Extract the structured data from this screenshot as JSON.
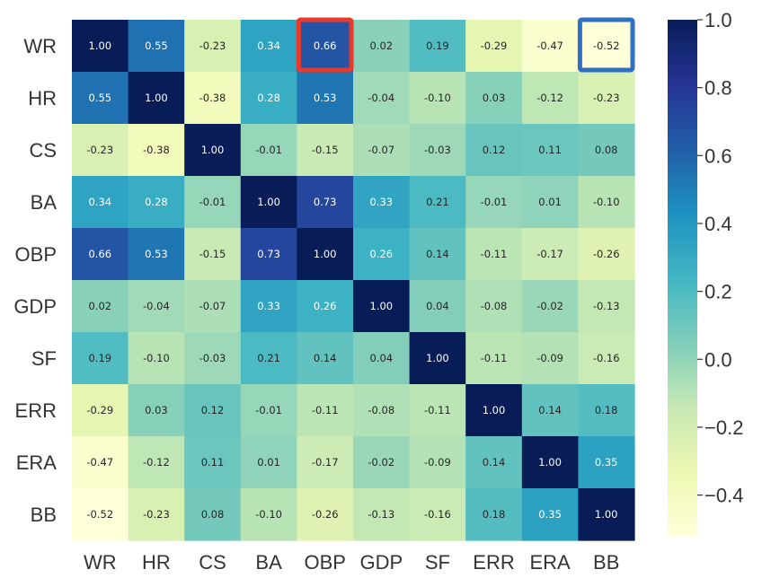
{
  "chart_data": {
    "type": "heatmap",
    "title": "",
    "labels": [
      "WR",
      "HR",
      "CS",
      "BA",
      "OBP",
      "GDP",
      "SF",
      "ERR",
      "ERA",
      "BB"
    ],
    "matrix": [
      [
        1.0,
        0.55,
        -0.23,
        0.34,
        0.66,
        0.02,
        0.19,
        -0.29,
        -0.47,
        -0.52
      ],
      [
        0.55,
        1.0,
        -0.38,
        0.28,
        0.53,
        -0.04,
        -0.1,
        0.03,
        -0.12,
        -0.23
      ],
      [
        -0.23,
        -0.38,
        1.0,
        -0.01,
        -0.15,
        -0.07,
        -0.03,
        0.12,
        0.11,
        0.08
      ],
      [
        0.34,
        0.28,
        -0.01,
        1.0,
        0.73,
        0.33,
        0.21,
        -0.01,
        0.01,
        -0.1
      ],
      [
        0.66,
        0.53,
        -0.15,
        0.73,
        1.0,
        0.26,
        0.14,
        -0.11,
        -0.17,
        -0.26
      ],
      [
        0.02,
        -0.04,
        -0.07,
        0.33,
        0.26,
        1.0,
        0.04,
        -0.08,
        -0.02,
        -0.13
      ],
      [
        0.19,
        -0.1,
        -0.03,
        0.21,
        0.14,
        0.04,
        1.0,
        -0.11,
        -0.09,
        -0.16
      ],
      [
        -0.29,
        0.03,
        0.12,
        -0.01,
        -0.11,
        -0.08,
        -0.11,
        1.0,
        0.14,
        0.18
      ],
      [
        -0.47,
        -0.12,
        0.11,
        0.01,
        -0.17,
        -0.02,
        -0.09,
        0.14,
        1.0,
        0.35
      ],
      [
        -0.52,
        -0.23,
        0.08,
        -0.1,
        -0.26,
        -0.13,
        -0.16,
        0.18,
        0.35,
        1.0
      ]
    ],
    "value_format": "0.00",
    "colormap": "YlGnBu",
    "color_range": [
      -0.52,
      1.0
    ],
    "colorbar": {
      "position": "right",
      "ticks": [
        1.0,
        0.8,
        0.6,
        0.4,
        0.2,
        0.0,
        -0.2,
        -0.4
      ],
      "tick_labels": [
        "1.0",
        "0.8",
        "0.6",
        "0.4",
        "0.2",
        "0.0",
        "−0.2",
        "−0.4"
      ]
    },
    "highlights": [
      {
        "row": 0,
        "col": 4,
        "color": "#e8392b"
      },
      {
        "row": 0,
        "col": 9,
        "color": "#2f6fc4"
      }
    ]
  }
}
